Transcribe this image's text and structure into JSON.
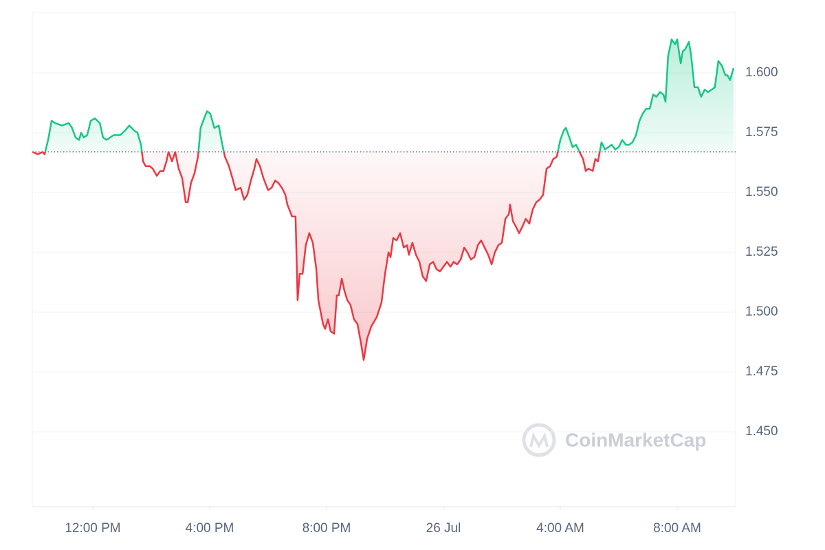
{
  "chart_data": {
    "type": "line",
    "watermark": "CoinMarketCap",
    "x": [
      9.93,
      10.12,
      10.28,
      10.35,
      10.47,
      10.59,
      10.71,
      10.94,
      11.18,
      11.29,
      11.41,
      11.53,
      11.6,
      11.69,
      11.81,
      11.93,
      12.07,
      12.24,
      12.35,
      12.47,
      12.71,
      12.82,
      12.94,
      13.11,
      13.25,
      13.41,
      13.53,
      13.65,
      13.72,
      13.81,
      13.95,
      14.05,
      14.19,
      14.31,
      14.42,
      14.52,
      14.59,
      14.71,
      14.82,
      14.94,
      15.06,
      15.18,
      15.25,
      15.36,
      15.48,
      15.6,
      15.69,
      15.81,
      15.91,
      16.02,
      16.16,
      16.31,
      16.4,
      16.52,
      16.66,
      16.78,
      16.89,
      17.06,
      17.18,
      17.29,
      17.41,
      17.53,
      17.6,
      17.72,
      17.84,
      18.0,
      18.12,
      18.24,
      18.35,
      18.47,
      18.59,
      18.66,
      18.82,
      18.94,
      19.01,
      19.08,
      19.18,
      19.29,
      19.41,
      19.53,
      19.65,
      19.72,
      19.88,
      19.95,
      20.05,
      20.14,
      20.26,
      20.35,
      20.42,
      20.52,
      20.61,
      20.71,
      20.82,
      20.94,
      21.06,
      21.18,
      21.27,
      21.39,
      21.53,
      21.72,
      21.88,
      22.0,
      22.12,
      22.19,
      22.28,
      22.4,
      22.52,
      22.64,
      22.75,
      22.82,
      22.94,
      23.06,
      23.18,
      23.29,
      23.41,
      23.53,
      23.65,
      23.76,
      23.88,
      24.0,
      24.12,
      24.24,
      24.35,
      24.47,
      24.59,
      24.71,
      24.82,
      24.94,
      25.06,
      25.18,
      25.29,
      25.41,
      25.53,
      25.65,
      25.76,
      25.88,
      26.0,
      26.12,
      26.24,
      26.28,
      26.38,
      26.47,
      26.59,
      26.71,
      26.82,
      26.94,
      27.06,
      27.18,
      27.29,
      27.41,
      27.53,
      27.65,
      27.76,
      27.88,
      28.0,
      28.12,
      28.19,
      28.31,
      28.42,
      28.54,
      28.66,
      28.78,
      28.87,
      28.96,
      29.11,
      29.2,
      29.29,
      29.41,
      29.53,
      29.65,
      29.76,
      29.88,
      30.0,
      30.12,
      30.24,
      30.35,
      30.47,
      30.59,
      30.71,
      30.82,
      30.94,
      31.06,
      31.18,
      31.29,
      31.41,
      31.53,
      31.6,
      31.69,
      31.81,
      31.93,
      32.0,
      32.12,
      32.19,
      32.28,
      32.4,
      32.47,
      32.59,
      32.71,
      32.82,
      32.94,
      33.06,
      33.18,
      33.29,
      33.41,
      33.53,
      33.65,
      33.72,
      33.81,
      33.93
    ],
    "values": [
      1.567,
      1.566,
      1.567,
      1.566,
      1.572,
      1.58,
      1.579,
      1.578,
      1.579,
      1.577,
      1.573,
      1.572,
      1.575,
      1.573,
      1.574,
      1.58,
      1.581,
      1.579,
      1.573,
      1.572,
      1.574,
      1.574,
      1.574,
      1.576,
      1.578,
      1.576,
      1.575,
      1.57,
      1.563,
      1.561,
      1.561,
      1.56,
      1.557,
      1.559,
      1.559,
      1.563,
      1.567,
      1.563,
      1.567,
      1.56,
      1.556,
      1.546,
      1.546,
      1.554,
      1.558,
      1.565,
      1.577,
      1.581,
      1.584,
      1.583,
      1.577,
      1.578,
      1.572,
      1.565,
      1.561,
      1.556,
      1.551,
      1.552,
      1.547,
      1.549,
      1.555,
      1.56,
      1.564,
      1.561,
      1.556,
      1.551,
      1.552,
      1.555,
      1.554,
      1.552,
      1.549,
      1.545,
      1.54,
      1.54,
      1.505,
      1.516,
      1.516,
      1.528,
      1.533,
      1.529,
      1.518,
      1.505,
      1.495,
      1.493,
      1.497,
      1.492,
      1.491,
      1.507,
      1.507,
      1.514,
      1.509,
      1.505,
      1.503,
      1.497,
      1.495,
      1.487,
      1.48,
      1.489,
      1.494,
      1.498,
      1.504,
      1.516,
      1.525,
      1.523,
      1.531,
      1.53,
      1.533,
      1.527,
      1.528,
      1.524,
      1.529,
      1.524,
      1.521,
      1.515,
      1.513,
      1.52,
      1.521,
      1.518,
      1.517,
      1.519,
      1.521,
      1.519,
      1.521,
      1.52,
      1.522,
      1.527,
      1.525,
      1.522,
      1.523,
      1.528,
      1.53,
      1.527,
      1.524,
      1.52,
      1.525,
      1.528,
      1.529,
      1.539,
      1.541,
      1.545,
      1.538,
      1.536,
      1.533,
      1.536,
      1.539,
      1.537,
      1.543,
      1.546,
      1.547,
      1.549,
      1.56,
      1.561,
      1.564,
      1.565,
      1.572,
      1.576,
      1.577,
      1.573,
      1.569,
      1.57,
      1.567,
      1.564,
      1.559,
      1.56,
      1.559,
      1.564,
      1.563,
      1.571,
      1.568,
      1.569,
      1.57,
      1.568,
      1.569,
      1.572,
      1.57,
      1.57,
      1.571,
      1.574,
      1.58,
      1.583,
      1.585,
      1.585,
      1.591,
      1.59,
      1.592,
      1.591,
      1.588,
      1.607,
      1.614,
      1.612,
      1.614,
      1.604,
      1.609,
      1.61,
      1.613,
      1.608,
      1.594,
      1.594,
      1.59,
      1.593,
      1.592,
      1.593,
      1.594,
      1.605,
      1.603,
      1.599,
      1.599,
      1.597,
      1.602
    ],
    "baseline": 1.567,
    "color_up": "#16c784",
    "color_down": "#ea3943",
    "xlim": [
      9.93,
      34.0
    ],
    "xticks": [
      {
        "value": 12,
        "label": "12:00 PM"
      },
      {
        "value": 16,
        "label": "4:00 PM"
      },
      {
        "value": 20,
        "label": "8:00 PM"
      },
      {
        "value": 24,
        "label": "26 Jul"
      },
      {
        "value": 28,
        "label": "4:00 AM"
      },
      {
        "value": 32,
        "label": "8:00 AM"
      }
    ],
    "ylim": [
      1.4187,
      1.6253
    ],
    "yticks": [
      {
        "value": 1.45,
        "label": "1.450"
      },
      {
        "value": 1.475,
        "label": "1.475"
      },
      {
        "value": 1.5,
        "label": "1.500"
      },
      {
        "value": 1.525,
        "label": "1.525"
      },
      {
        "value": 1.55,
        "label": "1.550"
      },
      {
        "value": 1.575,
        "label": "1.575"
      },
      {
        "value": 1.6,
        "label": "1.600"
      }
    ],
    "grid": true
  }
}
